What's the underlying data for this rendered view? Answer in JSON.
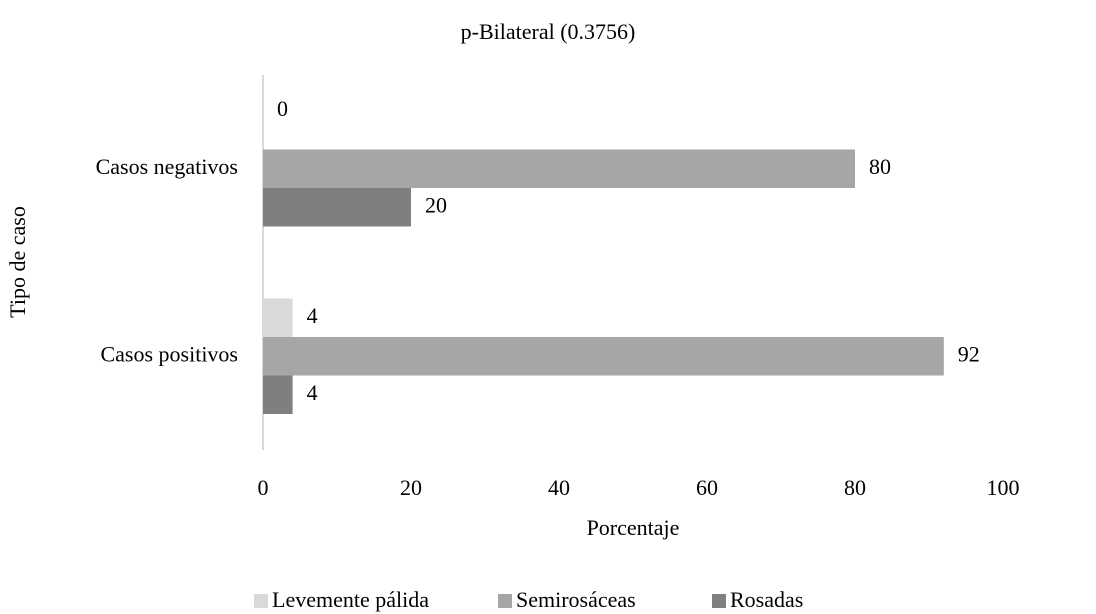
{
  "chart_data": {
    "type": "bar",
    "orientation": "horizontal",
    "title": "p-Bilateral (0.3756)",
    "x_label": "Porcentaje",
    "y_label": "Tipo de caso",
    "categories": [
      "Casos negativos",
      "Casos positivos"
    ],
    "series": [
      {
        "name": "Levemente pálida",
        "color": "#d9d9d9",
        "values": [
          0,
          4
        ]
      },
      {
        "name": "Semirosáceas",
        "color": "#a6a6a6",
        "values": [
          80,
          92
        ]
      },
      {
        "name": "Rosadas",
        "color": "#7f7f7f",
        "values": [
          20,
          4
        ]
      }
    ],
    "xlim": [
      0,
      100
    ],
    "xticks": [
      0,
      20,
      40,
      60,
      80,
      100
    ],
    "grid": false,
    "legend": "bottom"
  }
}
